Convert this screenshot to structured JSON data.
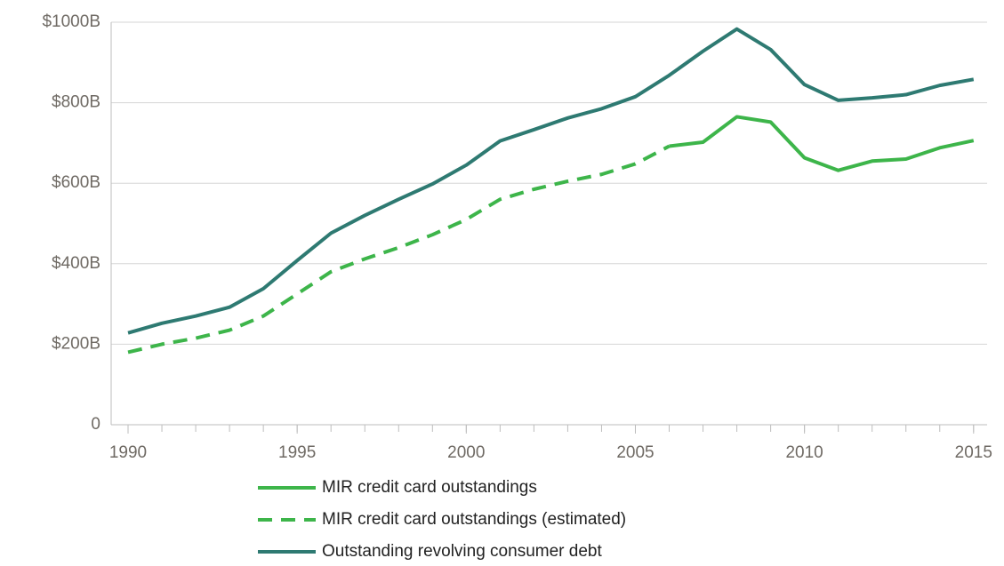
{
  "chart_data": {
    "type": "line",
    "x": [
      1990,
      1991,
      1992,
      1993,
      1994,
      1995,
      1996,
      1997,
      1998,
      1999,
      2000,
      2001,
      2002,
      2003,
      2004,
      2005,
      2006,
      2007,
      2008,
      2009,
      2010,
      2011,
      2012,
      2013,
      2014,
      2015
    ],
    "series": [
      {
        "name": "MIR credit card outstandings",
        "color": "#3db54a",
        "line_style": "solid",
        "values": [
          null,
          null,
          null,
          null,
          null,
          null,
          null,
          null,
          null,
          null,
          null,
          null,
          null,
          null,
          null,
          null,
          692,
          702,
          765,
          752,
          663,
          632,
          655,
          660,
          688,
          706
        ]
      },
      {
        "name": "MIR credit card outstandings (estimated)",
        "color": "#3db54a",
        "line_style": "dashed",
        "values": [
          180,
          200,
          215,
          235,
          270,
          325,
          380,
          412,
          440,
          472,
          510,
          560,
          585,
          605,
          622,
          648,
          692,
          null,
          null,
          null,
          null,
          null,
          null,
          null,
          null,
          null
        ]
      },
      {
        "name": "Outstanding revolving consumer debt",
        "color": "#2e7a72",
        "line_style": "solid",
        "values": [
          228,
          252,
          270,
          292,
          338,
          408,
          476,
          520,
          560,
          598,
          645,
          705,
          733,
          762,
          785,
          815,
          868,
          928,
          983,
          932,
          845,
          806,
          812,
          820,
          843,
          858
        ]
      }
    ],
    "xlim": [
      1989.5,
      2015.4
    ],
    "xticks": [
      1990,
      1995,
      2000,
      2005,
      2010,
      2015
    ],
    "ylim": [
      0,
      1000
    ],
    "yticks": [
      0,
      {
        "value": 200,
        "label": "$200B"
      },
      {
        "value": 400,
        "label": "$400B"
      },
      {
        "value": 600,
        "label": "$600B"
      },
      {
        "value": 800,
        "label": "$800B"
      },
      {
        "value": 1000,
        "label": "$1000B"
      }
    ],
    "grid": true,
    "legend": "bottom"
  }
}
